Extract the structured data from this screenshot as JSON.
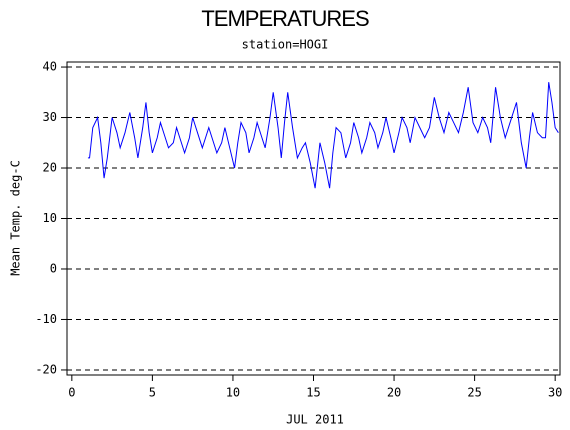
{
  "chart_data": {
    "type": "line",
    "title": "TEMPERATURES",
    "subtitle": "station=HOGI",
    "x_label": "JUL 2011",
    "y_label": "Mean Temp. deg-C",
    "color": "#0000ff",
    "xlim": [
      -0.3,
      30.3
    ],
    "xticks": [
      0,
      5,
      10,
      15,
      20,
      25,
      30
    ],
    "ylim": [
      -21,
      41
    ],
    "yticks": [
      -20,
      -10,
      0,
      10,
      20,
      30,
      40
    ],
    "grid": true,
    "x": [
      1.0,
      1.1,
      1.3,
      1.6,
      1.8,
      2.0,
      2.2,
      2.5,
      2.8,
      3.0,
      3.3,
      3.6,
      3.9,
      4.1,
      4.4,
      4.6,
      4.8,
      5.0,
      5.3,
      5.5,
      5.8,
      6.0,
      6.3,
      6.5,
      6.8,
      7.0,
      7.3,
      7.5,
      7.8,
      8.1,
      8.3,
      8.5,
      8.8,
      9.0,
      9.3,
      9.5,
      9.8,
      10.1,
      10.3,
      10.5,
      10.8,
      11.0,
      11.3,
      11.5,
      11.8,
      12.0,
      12.3,
      12.5,
      12.8,
      13.0,
      13.2,
      13.4,
      13.7,
      14.0,
      14.3,
      14.5,
      14.8,
      15.1,
      15.3,
      15.4,
      15.7,
      16.0,
      16.2,
      16.4,
      16.7,
      17.0,
      17.3,
      17.5,
      17.8,
      18.0,
      18.3,
      18.5,
      18.8,
      19.0,
      19.3,
      19.5,
      19.8,
      20.0,
      20.3,
      20.5,
      20.8,
      21.0,
      21.3,
      21.6,
      21.9,
      22.2,
      22.5,
      22.8,
      23.1,
      23.4,
      23.7,
      24.0,
      24.3,
      24.6,
      24.9,
      25.2,
      25.5,
      25.8,
      26.0,
      26.3,
      26.6,
      26.9,
      27.2,
      27.6,
      27.9,
      28.2,
      28.4,
      28.6,
      28.9,
      29.2,
      29.4,
      29.6,
      29.8,
      30.0,
      30.2
    ],
    "values": [
      22,
      22,
      28,
      30,
      25,
      18,
      22,
      30,
      27,
      24,
      27,
      31,
      26,
      22,
      28,
      33,
      27,
      23,
      26,
      29,
      26,
      24,
      25,
      28,
      25,
      23,
      26,
      30,
      27,
      24,
      26,
      28,
      25,
      23,
      25,
      28,
      24,
      20,
      25,
      29,
      27,
      23,
      26,
      29,
      26,
      24,
      30,
      35,
      28,
      22,
      29,
      35,
      28,
      22,
      24,
      25,
      21,
      16,
      22,
      25,
      21,
      16,
      23,
      28,
      27,
      22,
      25,
      29,
      26,
      23,
      26,
      29,
      27,
      24,
      27,
      30,
      26,
      23,
      27,
      30,
      28,
      25,
      30,
      28,
      26,
      28,
      34,
      30,
      27,
      31,
      29,
      27,
      31,
      36,
      29,
      27,
      30,
      28,
      25,
      36,
      30,
      26,
      29,
      33,
      25,
      20,
      26,
      31,
      27,
      26,
      26,
      37,
      33,
      28,
      27
    ]
  }
}
